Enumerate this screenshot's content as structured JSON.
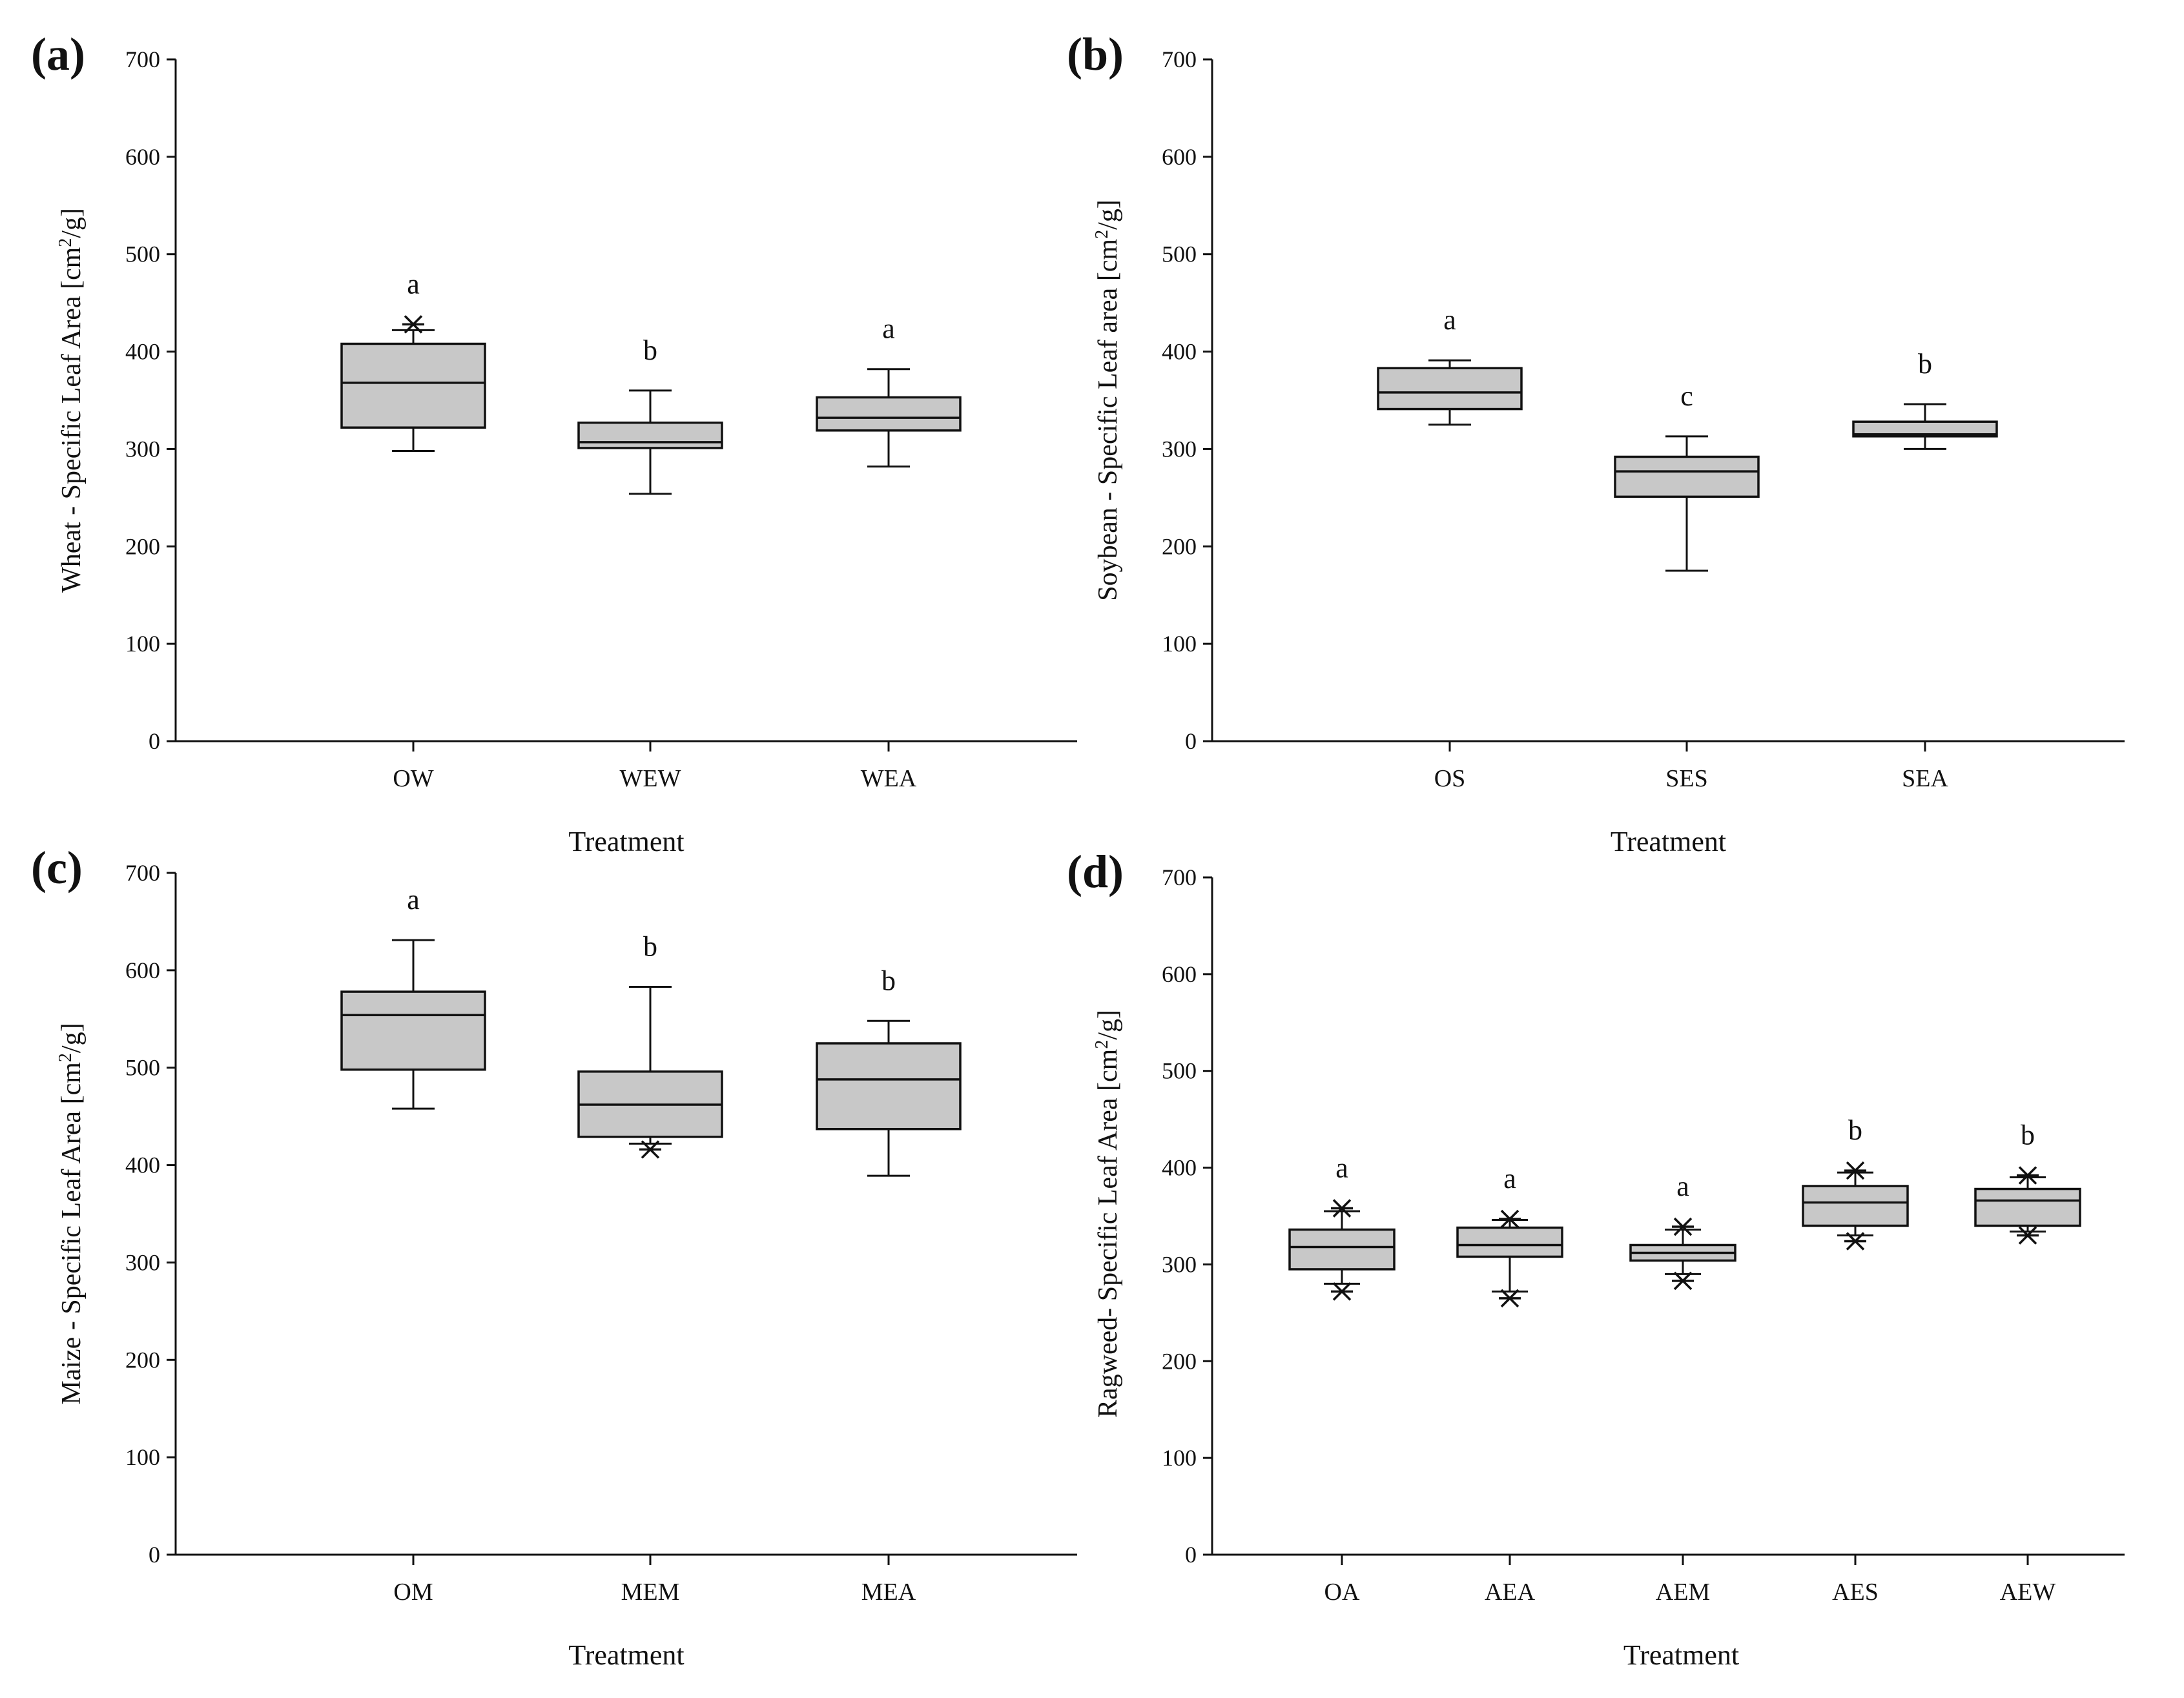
{
  "style": {
    "box_fill": "#c8c8c8",
    "line_color": "#111111"
  },
  "panels": [
    {
      "tag": "(a)",
      "ylabel_parts": [
        "Wheat - Specific Leaf Area [cm",
        "2",
        "/g]"
      ]
    },
    {
      "tag": "(b)",
      "ylabel_parts": [
        "Soybean - Specific Leaf area [cm",
        "2",
        "/g]"
      ]
    },
    {
      "tag": "(c)",
      "ylabel_parts": [
        "Maize - Specific Leaf Area [cm",
        "2",
        "/g]"
      ]
    },
    {
      "tag": "(d)",
      "ylabel_parts": [
        "Ragweed- Specific Leaf Area [cm",
        "2",
        "/g]"
      ]
    }
  ],
  "chart_data": [
    {
      "type": "box",
      "title": "(a)",
      "xlabel": "Treatment",
      "ylabel": "Wheat - Specific Leaf Area [cm2/g]",
      "ylim": [
        0,
        700
      ],
      "yticks": [
        0,
        100,
        200,
        300,
        400,
        500,
        600,
        700
      ],
      "categories": [
        "OW",
        "WEW",
        "WEA"
      ],
      "boxes": [
        {
          "category": "OW",
          "whisker_low": 298,
          "q1": 322,
          "median": 368,
          "q3": 408,
          "whisker_high": 422,
          "outliers": [
            428
          ],
          "letter": "a"
        },
        {
          "category": "WEW",
          "whisker_low": 254,
          "q1": 301,
          "median": 307,
          "q3": 327,
          "whisker_high": 360,
          "outliers": [],
          "letter": "b"
        },
        {
          "category": "WEA",
          "whisker_low": 282,
          "q1": 319,
          "median": 332,
          "q3": 353,
          "whisker_high": 382,
          "outliers": [],
          "letter": "a"
        }
      ]
    },
    {
      "type": "box",
      "title": "(b)",
      "xlabel": "Treatment",
      "ylabel": "Soybean - Specific Leaf area [cm2/g]",
      "ylim": [
        0,
        700
      ],
      "yticks": [
        0,
        100,
        200,
        300,
        400,
        500,
        600,
        700
      ],
      "categories": [
        "OS",
        "SES",
        "SEA"
      ],
      "boxes": [
        {
          "category": "OS",
          "whisker_low": 325,
          "q1": 341,
          "median": 358,
          "q3": 383,
          "whisker_high": 391,
          "outliers": [],
          "letter": "a"
        },
        {
          "category": "SES",
          "whisker_low": 175,
          "q1": 251,
          "median": 277,
          "q3": 292,
          "whisker_high": 313,
          "outliers": [],
          "letter": "c"
        },
        {
          "category": "SEA",
          "whisker_low": 300,
          "q1": 313,
          "median": 315,
          "q3": 328,
          "whisker_high": 346,
          "outliers": [],
          "letter": "b"
        }
      ]
    },
    {
      "type": "box",
      "title": "(c)",
      "xlabel": "Treatment",
      "ylabel": "Maize - Specific Leaf Area [cm2/g]",
      "ylim": [
        0,
        700
      ],
      "yticks": [
        0,
        100,
        200,
        300,
        400,
        500,
        600,
        700
      ],
      "categories": [
        "OM",
        "MEM",
        "MEA"
      ],
      "boxes": [
        {
          "category": "OM",
          "whisker_low": 458,
          "q1": 498,
          "median": 554,
          "q3": 578,
          "whisker_high": 631,
          "outliers": [],
          "letter": "a"
        },
        {
          "category": "MEM",
          "whisker_low": 422,
          "q1": 429,
          "median": 462,
          "q3": 496,
          "whisker_high": 583,
          "outliers": [
            416
          ],
          "letter": "b"
        },
        {
          "category": "MEA",
          "whisker_low": 389,
          "q1": 437,
          "median": 488,
          "q3": 525,
          "whisker_high": 548,
          "outliers": [],
          "letter": "b"
        }
      ]
    },
    {
      "type": "box",
      "title": "(d)",
      "xlabel": "Treatment",
      "ylabel": "Ragweed- Specific Leaf Area [cm2/g]",
      "ylim": [
        0,
        700
      ],
      "yticks": [
        0,
        100,
        200,
        300,
        400,
        500,
        600,
        700
      ],
      "categories": [
        "OA",
        "AEA",
        "AEM",
        "AES",
        "AEW"
      ],
      "boxes": [
        {
          "category": "OA",
          "whisker_low": 280,
          "q1": 295,
          "median": 318,
          "q3": 336,
          "whisker_high": 355,
          "outliers": [
            358,
            272
          ],
          "letter": "a"
        },
        {
          "category": "AEA",
          "whisker_low": 272,
          "q1": 308,
          "median": 320,
          "q3": 338,
          "whisker_high": 346,
          "outliers": [
            347,
            265
          ],
          "letter": "a"
        },
        {
          "category": "AEM",
          "whisker_low": 290,
          "q1": 304,
          "median": 312,
          "q3": 320,
          "whisker_high": 336,
          "outliers": [
            339,
            283
          ],
          "letter": "a"
        },
        {
          "category": "AES",
          "whisker_low": 330,
          "q1": 340,
          "median": 364,
          "q3": 381,
          "whisker_high": 395,
          "outliers": [
            397,
            324
          ],
          "letter": "b"
        },
        {
          "category": "AEW",
          "whisker_low": 334,
          "q1": 340,
          "median": 366,
          "q3": 378,
          "whisker_high": 390,
          "outliers": [
            392,
            330
          ],
          "letter": "b"
        }
      ]
    }
  ]
}
